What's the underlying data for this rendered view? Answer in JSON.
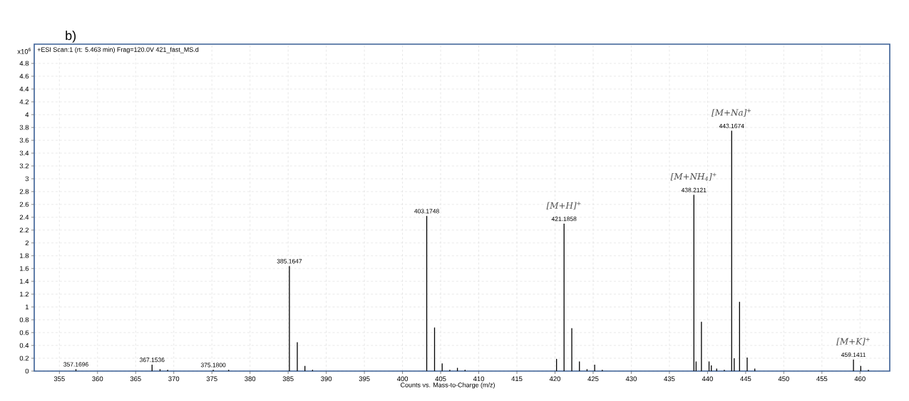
{
  "chart_data": {
    "type": "bar",
    "title": "+ESI Scan:1 (rt: 5.463 min) Frag=120.0V 421_fast_MS.d",
    "xlabel": "Counts vs. Mass-to-Charge (m/z)",
    "ylabel": "x10$^{6}$",
    "x": [
      357.1696,
      367.1536,
      368.2,
      369.2,
      375.18,
      377.2,
      385.1647,
      386.2,
      387.2,
      388.2,
      403.1748,
      404.2,
      405.2,
      406.2,
      407.2,
      408.2,
      420.2,
      421.1858,
      422.2,
      423.2,
      424.2,
      425.2,
      426.2,
      438.2121,
      438.5,
      439.2,
      440.2,
      440.5,
      441.2,
      442.2,
      443.1674,
      443.5,
      444.2,
      445.2,
      446.2,
      459.1411,
      460.1,
      461.1
    ],
    "values": [
      0.03,
      0.1,
      0.03,
      0.02,
      0.02,
      0.02,
      1.64,
      0.45,
      0.08,
      0.02,
      2.42,
      0.68,
      0.12,
      0.02,
      0.05,
      0.02,
      0.19,
      2.3,
      0.67,
      0.15,
      0.03,
      0.1,
      0.02,
      2.75,
      0.15,
      0.77,
      0.15,
      0.09,
      0.04,
      0.02,
      3.75,
      0.2,
      1.08,
      0.21,
      0.04,
      0.18,
      0.08,
      0.02
    ],
    "color": "#000000",
    "xlim": [
      351.7,
      463.9
    ],
    "ylim": [
      0,
      5.1
    ],
    "xticks": [
      355,
      360,
      365,
      370,
      375,
      380,
      385,
      390,
      395,
      400,
      405,
      410,
      415,
      420,
      425,
      430,
      435,
      440,
      445,
      450,
      455,
      460
    ],
    "yticks": [
      0,
      0.2,
      0.4,
      0.6,
      0.8,
      1,
      1.2,
      1.4,
      1.6,
      1.8,
      2,
      2.2,
      2.4,
      2.6,
      2.8,
      3,
      3.2,
      3.4,
      3.6,
      3.8,
      4,
      4.2,
      4.4,
      4.6,
      4.8
    ],
    "grid": true,
    "annotations": [
      "b)",
      {
        "text": "357.1696",
        "x": 357.1696,
        "y": 0.03
      },
      {
        "text": "367.1536",
        "x": 367.1536,
        "y": 0.1
      },
      {
        "text": "375.1800",
        "x": 375.18,
        "y": 0.02
      },
      {
        "text": "385.1647",
        "x": 385.1647,
        "y": 1.64
      },
      {
        "text": "403.1748",
        "x": 403.1748,
        "y": 2.42
      },
      {
        "text": "421.1858",
        "x": 421.1858,
        "y": 2.3
      },
      {
        "text": "438.2121",
        "x": 438.2121,
        "y": 2.75
      },
      {
        "text": "443.1674",
        "x": 443.1674,
        "y": 3.75
      },
      {
        "text": "459.1411",
        "x": 459.1411,
        "y": 0.18
      },
      {
        "text": "[M+H]$^{+}$",
        "x": 421.1858,
        "y": 2.3
      },
      {
        "text": "[M+NH$_{4}$]$^{+}$",
        "x": 438.2121,
        "y": 2.75
      },
      {
        "text": "[M+Na]$^{+}$",
        "x": 443.1674,
        "y": 3.75
      },
      {
        "text": "[M+K]$^{+}$",
        "x": 459.1411,
        "y": 0.18
      }
    ]
  }
}
